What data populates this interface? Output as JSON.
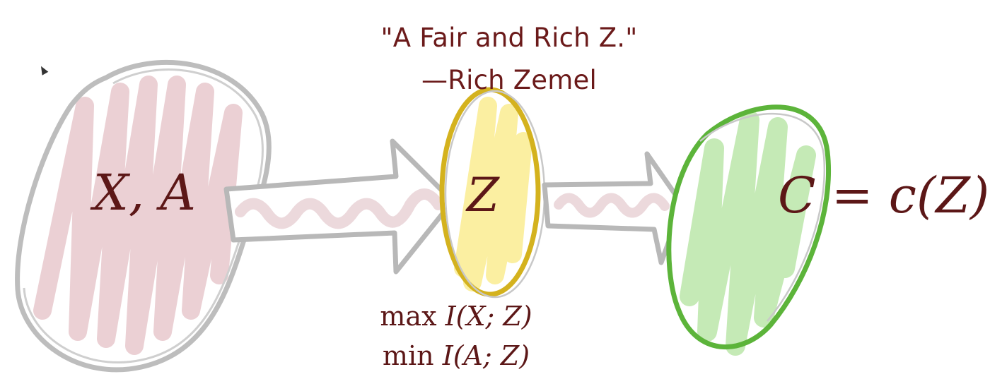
{
  "quote": {
    "line1": "\"A Fair and Rich Z.\"",
    "line2": "—Rich Zemel"
  },
  "nodes": {
    "input": {
      "label": "X, A",
      "color": "#c0c0c0",
      "fill": "#e8c8cc"
    },
    "latent": {
      "label": "Z",
      "color": "#d4b21e",
      "fill": "#fbee9c"
    },
    "output": {
      "label_left": "C",
      "label_eq": "=",
      "label_right": "c(Z)",
      "color": "#5cb43a",
      "fill": "#bfe8ae"
    }
  },
  "objectives": {
    "max_op": "max",
    "max_term": "I(X; Z)",
    "min_op": "min",
    "min_term": "I(A; Z)"
  },
  "colors": {
    "text": "#5c1717",
    "arrow_outline": "#b0b0b0",
    "arrow_fill": "#ecd9dc"
  }
}
